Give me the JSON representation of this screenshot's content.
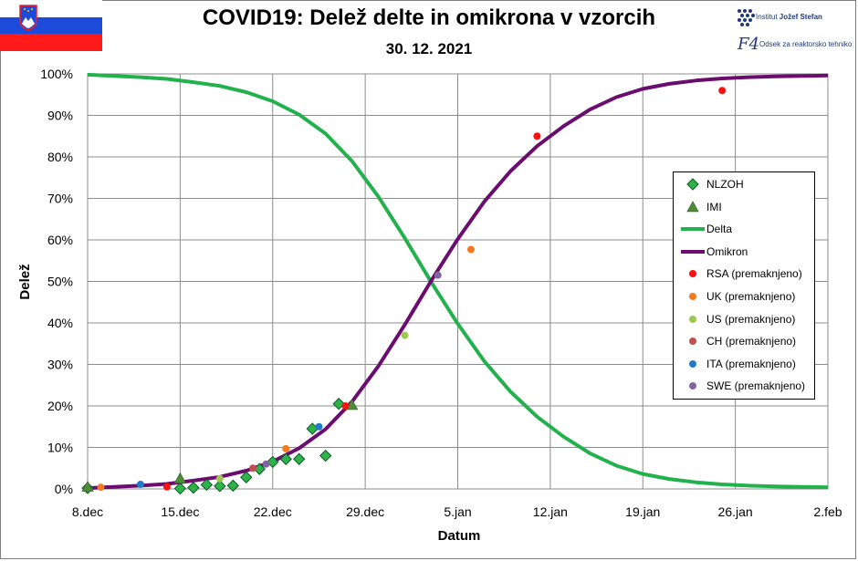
{
  "title": "COVID19: Delež delte in omikrona v vzorcih",
  "subtitle": "30. 12. 2021",
  "logos": {
    "ijs_prefix": "Institut ",
    "ijs_bold": "Jožef Stefan",
    "f4_mark": "F4",
    "f4_text": "Odsek za reaktorsko tehniko"
  },
  "colors": {
    "nlzoh": "#2db34a",
    "imi": "#4e8c3a",
    "delta": "#22b14c",
    "omikron": "#6a0d6e",
    "rsa": "#ff1010",
    "uk": "#f47a20",
    "us": "#9fc850",
    "ch": "#c0504d",
    "ita": "#1f7ac8",
    "swe": "#8064a2",
    "grid": "#8c8c8c",
    "flag_blue": "#1c4bd9",
    "flag_red": "#ff1a1a"
  },
  "chart_data": {
    "type": "line",
    "title": "COVID19: Delež delte in omikrona v vzorcih",
    "subtitle": "30. 12. 2021",
    "xlabel": "Datum",
    "ylabel": "Delež",
    "x_unit": "days since 8.dec 2021",
    "xlim": [
      0,
      56
    ],
    "ylim": [
      0,
      100
    ],
    "x_ticks": [
      {
        "x": 0,
        "label": "8.dec"
      },
      {
        "x": 7,
        "label": "15.dec"
      },
      {
        "x": 14,
        "label": "22.dec"
      },
      {
        "x": 21,
        "label": "29.dec"
      },
      {
        "x": 28,
        "label": "5.jan"
      },
      {
        "x": 35,
        "label": "12.jan"
      },
      {
        "x": 42,
        "label": "19.jan"
      },
      {
        "x": 49,
        "label": "26.jan"
      },
      {
        "x": 56,
        "label": "2.feb"
      }
    ],
    "y_ticks": [
      {
        "y": 0,
        "label": "0%"
      },
      {
        "y": 10,
        "label": "10%"
      },
      {
        "y": 20,
        "label": "20%"
      },
      {
        "y": 30,
        "label": "30%"
      },
      {
        "y": 40,
        "label": "40%"
      },
      {
        "y": 50,
        "label": "50%"
      },
      {
        "y": 60,
        "label": "60%"
      },
      {
        "y": 70,
        "label": "70%"
      },
      {
        "y": 80,
        "label": "80%"
      },
      {
        "y": 90,
        "label": "90%"
      },
      {
        "y": 100,
        "label": "100%"
      }
    ],
    "grid": true,
    "legend_position": "right",
    "series": [
      {
        "name": "NLZOH",
        "kind": "diamond",
        "color_key": "nlzoh",
        "x": [
          0,
          7,
          8,
          9,
          10,
          11,
          12,
          13,
          14,
          15,
          16,
          17,
          18,
          19
        ],
        "y": [
          0.2,
          0.1,
          0.3,
          1.0,
          0.7,
          0.8,
          2.8,
          4.8,
          6.5,
          7.2,
          7.2,
          14.5,
          8.0,
          20.5
        ]
      },
      {
        "name": "IMI",
        "kind": "triangle",
        "color_key": "imi",
        "x": [
          0,
          7,
          20
        ],
        "y": [
          0.5,
          2.5,
          20.2
        ]
      },
      {
        "name": "Delta",
        "kind": "line",
        "color_key": "delta",
        "x": [
          0,
          2,
          4,
          6,
          8,
          10,
          12,
          14,
          16,
          18,
          20,
          22,
          24,
          26,
          28,
          30,
          32,
          34,
          36,
          38,
          40,
          42,
          44,
          46,
          48,
          50,
          52,
          54,
          56
        ],
        "y": [
          99.8,
          99.5,
          99.2,
          98.8,
          98.0,
          97.1,
          95.6,
          93.4,
          90.2,
          85.6,
          79.0,
          70.4,
          60.4,
          49.8,
          39.8,
          30.8,
          23.4,
          17.4,
          12.6,
          8.6,
          5.6,
          3.6,
          2.4,
          1.6,
          1.1,
          0.8,
          0.6,
          0.5,
          0.4
        ]
      },
      {
        "name": "Omikron",
        "kind": "line",
        "color_key": "omikron",
        "x": [
          0,
          2,
          4,
          6,
          8,
          10,
          12,
          14,
          16,
          18,
          20,
          22,
          24,
          26,
          28,
          30,
          32,
          34,
          36,
          38,
          40,
          42,
          44,
          46,
          48,
          50,
          52,
          54,
          56
        ],
        "y": [
          0.2,
          0.5,
          0.8,
          1.2,
          2.0,
          2.9,
          4.4,
          6.6,
          9.8,
          14.4,
          21.0,
          29.6,
          39.6,
          50.2,
          60.2,
          69.2,
          76.6,
          82.6,
          87.4,
          91.4,
          94.4,
          96.4,
          97.6,
          98.4,
          98.9,
          99.2,
          99.4,
          99.5,
          99.6
        ]
      },
      {
        "name": "RSA (premaknjeno)",
        "kind": "dot",
        "color_key": "rsa",
        "x": [
          6,
          19.5,
          34,
          48
        ],
        "y": [
          0.5,
          20,
          85,
          96
        ]
      },
      {
        "name": "UK (premaknjeno)",
        "kind": "dot",
        "color_key": "uk",
        "x": [
          1,
          15,
          29
        ],
        "y": [
          0.4,
          9.7,
          57.7
        ]
      },
      {
        "name": "US (premaknjeno)",
        "kind": "dot",
        "color_key": "us",
        "x": [
          10,
          24
        ],
        "y": [
          2.5,
          37
        ]
      },
      {
        "name": "CH (premaknjeno)",
        "kind": "dot",
        "color_key": "ch",
        "x": [
          12.5
        ],
        "y": [
          5
        ]
      },
      {
        "name": "ITA (premaknjeno)",
        "kind": "dot",
        "color_key": "ita",
        "x": [
          4,
          17.5
        ],
        "y": [
          1.1,
          15
        ]
      },
      {
        "name": "SWE (premaknjeno)",
        "kind": "dot",
        "color_key": "swe",
        "x": [
          13.5,
          26.5
        ],
        "y": [
          6,
          51.5
        ]
      }
    ]
  }
}
